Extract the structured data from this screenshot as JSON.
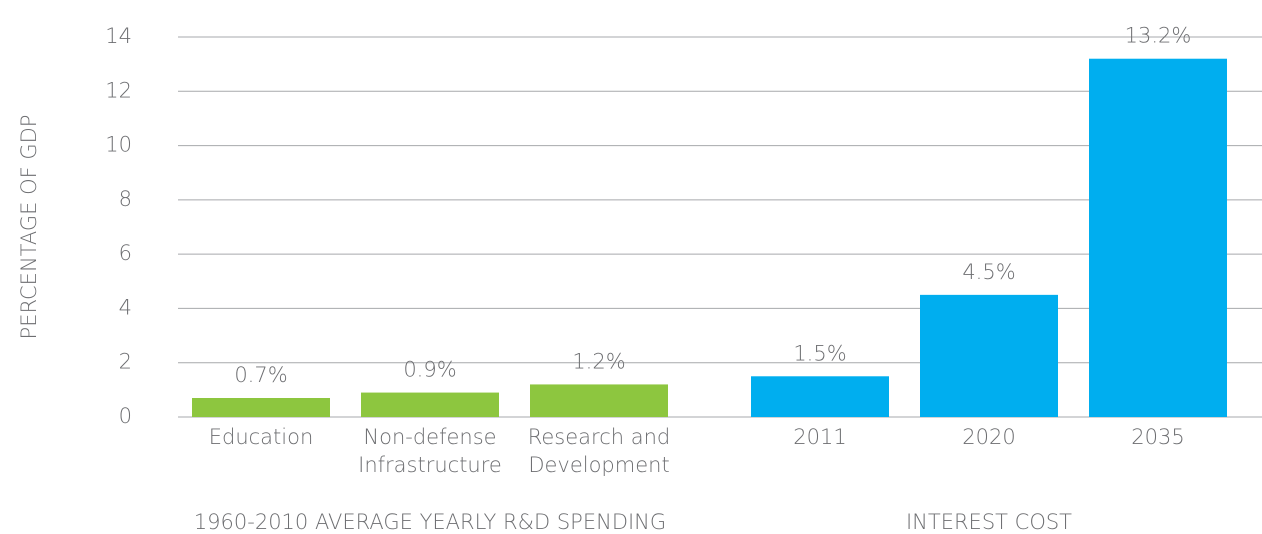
{
  "chart_data": {
    "type": "bar",
    "y_label": "PERCENTAGE OF GDP",
    "ylim": [
      0,
      14
    ],
    "yticks": [
      0,
      2,
      4,
      6,
      8,
      10,
      12,
      14
    ],
    "grid": true,
    "groups": [
      {
        "label": "1960-2010 AVERAGE YEARLY R&D SPENDING",
        "color": "#8dc63f",
        "categories": [
          "Education",
          "Non-defense\nInfrastructure",
          "Research and\nDevelopment"
        ],
        "values": [
          0.7,
          0.9,
          1.2
        ],
        "value_labels": [
          "0.7%",
          "0.9%",
          "1.2%"
        ]
      },
      {
        "label": "INTEREST COST",
        "color": "#00aeef",
        "categories": [
          "2011",
          "2020",
          "2035"
        ],
        "values": [
          1.5,
          4.5,
          13.2
        ],
        "value_labels": [
          "1.5%",
          "4.5%",
          "13.2%"
        ]
      }
    ]
  }
}
